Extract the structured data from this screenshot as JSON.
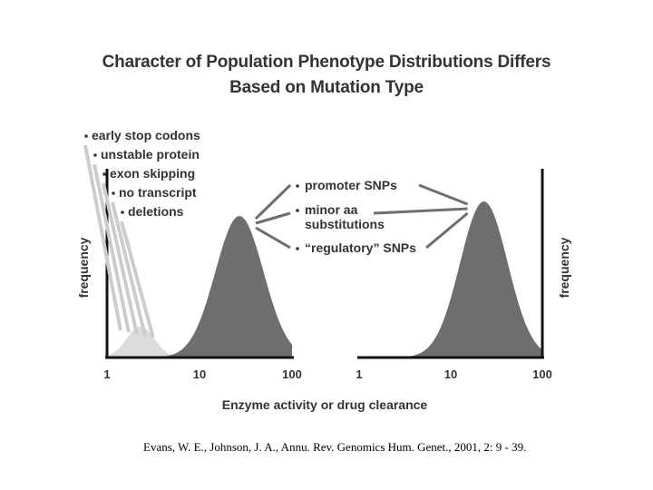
{
  "title_line1": "Character of Population Phenotype Distributions Differs",
  "title_line2": "Based on Mutation Type",
  "citation": "Evans, W. E., Johnson, J. A., Annu. Rev. Genomics Hum. Genet., 2001, 2: 9 - 39.",
  "colors": {
    "text": "#333333",
    "dark_curve": "#6e6e6e",
    "light_curve": "#dcdcdc",
    "axis": "#111111",
    "leader": "#cccccc"
  },
  "chart_data": {
    "type": "area",
    "xlabel": "Enzyme activity or drug clearance",
    "ylabel": "frequency",
    "x_scale": "log",
    "panels": [
      {
        "xlim": [
          1,
          100
        ],
        "x_ticks": [
          "1",
          "10",
          "100"
        ],
        "ylabel_side": "left",
        "distributions": [
          {
            "kind": "light",
            "peak_x": 2.3,
            "spread_decades": 0.15,
            "relative_height": 0.22
          },
          {
            "kind": "dark",
            "peak_x": 27,
            "spread_decades": 0.26,
            "relative_height": 1.0
          }
        ],
        "annotations": [
          {
            "text": "early stop codons",
            "points_to": "light"
          },
          {
            "text": "unstable protein",
            "points_to": "light"
          },
          {
            "text": "exon skipping",
            "points_to": "light"
          },
          {
            "text": "no transcript",
            "points_to": "light"
          },
          {
            "text": "deletions",
            "points_to": "light"
          }
        ]
      },
      {
        "xlim": [
          1,
          100
        ],
        "x_ticks": [
          "1",
          "10",
          "100"
        ],
        "ylabel_side": "right",
        "distributions": [
          {
            "kind": "dark",
            "peak_x": 23,
            "spread_decades": 0.26,
            "relative_height": 1.0
          }
        ]
      }
    ],
    "middle_annotations": [
      {
        "line1": "promoter SNPs",
        "line2": ""
      },
      {
        "line1": "minor aa",
        "line2": "substitutions"
      },
      {
        "line1": "“regulatory” SNPs",
        "line2": ""
      }
    ]
  }
}
